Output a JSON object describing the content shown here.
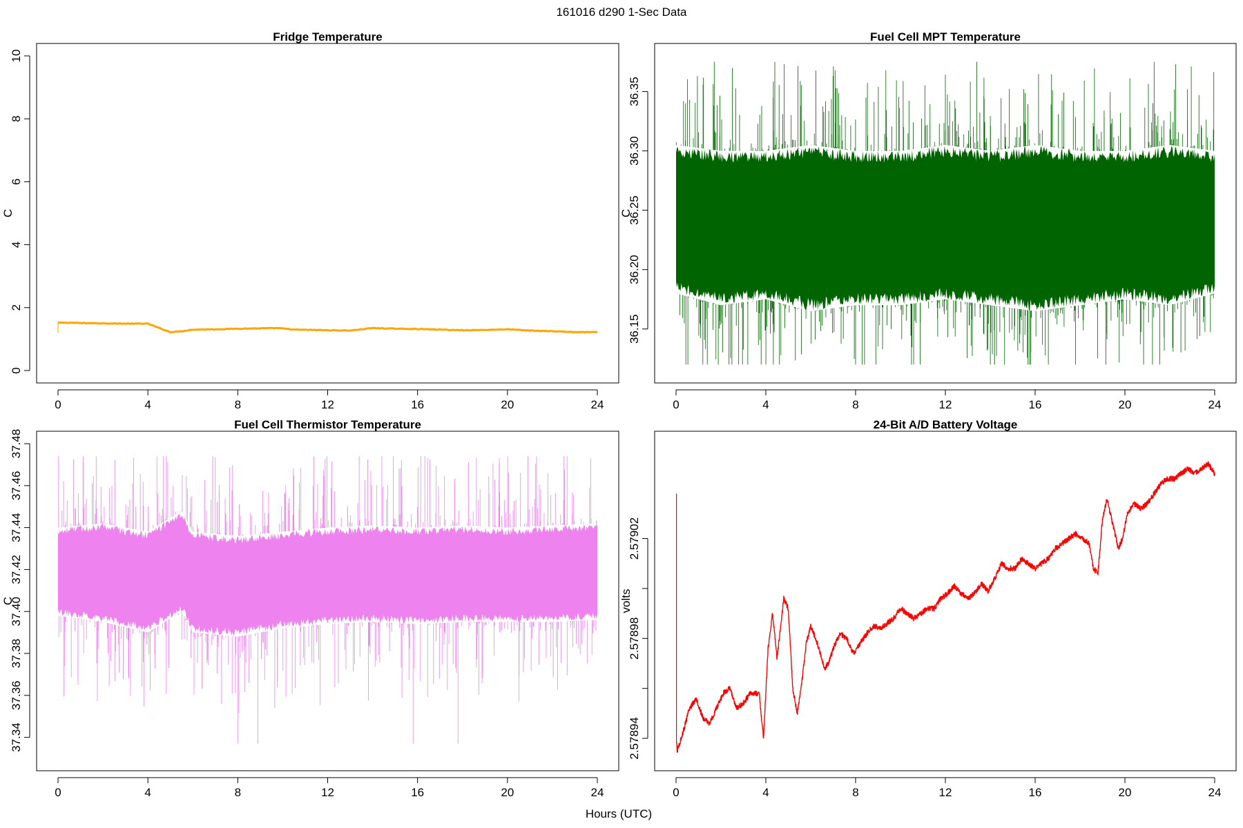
{
  "figure": {
    "title": "161016   d290   1-Sec Data",
    "xlabel": "Hours (UTC)"
  },
  "chart_data": [
    {
      "type": "line",
      "title": "Fridge Temperature",
      "xlabel": "Hours (UTC)",
      "ylabel": "C",
      "xlim": [
        0,
        24
      ],
      "ylim": [
        0,
        10
      ],
      "xticks": [
        0,
        4,
        8,
        12,
        16,
        20,
        24
      ],
      "yticks": [
        0,
        2,
        4,
        6,
        8,
        10
      ],
      "ytick_labels": [
        "0",
        "2",
        "4",
        "6",
        "8",
        "10"
      ],
      "color": "#ffa500",
      "series": [
        {
          "x": [
            0,
            0.5,
            1,
            2,
            3,
            4,
            4.5,
            5,
            5.5,
            6,
            7,
            8,
            9,
            9.8,
            10.5,
            12,
            13,
            14,
            15,
            16,
            17,
            18,
            19,
            20,
            21,
            22,
            23,
            24
          ],
          "y": [
            1.52,
            1.52,
            1.51,
            1.5,
            1.49,
            1.49,
            1.35,
            1.22,
            1.25,
            1.3,
            1.31,
            1.33,
            1.34,
            1.35,
            1.3,
            1.28,
            1.27,
            1.35,
            1.33,
            1.32,
            1.3,
            1.28,
            1.29,
            1.31,
            1.27,
            1.25,
            1.22,
            1.22
          ]
        }
      ]
    },
    {
      "type": "line",
      "title": "Fuel Cell MPT Temperature",
      "xlabel": "Hours (UTC)",
      "ylabel": "C",
      "xlim": [
        0,
        24
      ],
      "ylim": [
        36.115,
        36.38
      ],
      "xticks": [
        0,
        4,
        8,
        12,
        16,
        20,
        24
      ],
      "yticks": [
        36.15,
        36.2,
        36.25,
        36.3,
        36.35
      ],
      "ytick_labels": [
        "36.15",
        "36.20",
        "36.25",
        "36.30",
        "36.35"
      ],
      "color": "#006400",
      "series": [
        {
          "x": [
            0,
            2,
            4,
            6,
            8,
            10,
            12,
            14,
            16,
            18,
            20,
            22,
            24
          ],
          "y": [
            36.24,
            36.24,
            36.24,
            36.24,
            36.24,
            36.24,
            36.24,
            36.24,
            36.24,
            36.24,
            36.24,
            36.24,
            36.24
          ],
          "low": [
            36.18,
            36.17,
            36.175,
            36.165,
            36.17,
            36.17,
            36.175,
            36.17,
            36.165,
            36.17,
            36.175,
            36.17,
            36.18
          ],
          "high": [
            36.305,
            36.3,
            36.3,
            36.305,
            36.3,
            36.3,
            36.305,
            36.3,
            36.305,
            36.3,
            36.3,
            36.305,
            36.3
          ],
          "min": 36.12,
          "max": 36.375
        }
      ]
    },
    {
      "type": "line",
      "title": "Fuel Cell Thermistor Temperature",
      "xlabel": "Hours (UTC)",
      "ylabel": "C",
      "xlim": [
        0,
        24
      ],
      "ylim": [
        37.33,
        37.48
      ],
      "xticks": [
        0,
        4,
        8,
        12,
        16,
        20,
        24
      ],
      "yticks": [
        37.34,
        37.36,
        37.38,
        37.4,
        37.42,
        37.44,
        37.46,
        37.48
      ],
      "ytick_labels": [
        "37.34",
        "37.36",
        "37.38",
        "37.40",
        "37.42",
        "37.44",
        "37.46",
        "37.48"
      ],
      "color": "#ee82ee",
      "series": [
        {
          "x": [
            0,
            2,
            4,
            5.5,
            6,
            8,
            10,
            12,
            14,
            16,
            18,
            20,
            22,
            24
          ],
          "y": [
            37.418,
            37.418,
            37.415,
            37.42,
            37.415,
            37.413,
            37.415,
            37.416,
            37.417,
            37.416,
            37.417,
            37.417,
            37.417,
            37.417
          ],
          "low": [
            37.398,
            37.395,
            37.39,
            37.4,
            37.39,
            37.388,
            37.392,
            37.394,
            37.395,
            37.394,
            37.395,
            37.395,
            37.395,
            37.396
          ],
          "high": [
            37.44,
            37.442,
            37.438,
            37.448,
            37.438,
            37.436,
            37.438,
            37.44,
            37.441,
            37.44,
            37.441,
            37.44,
            37.441,
            37.442
          ],
          "min": 37.337,
          "max": 37.474
        }
      ]
    },
    {
      "type": "line",
      "title": "24-Bit A/D Battery Voltage",
      "xlabel": "Hours (UTC)",
      "ylabel": "volts",
      "xlim": [
        0,
        24
      ],
      "ylim": [
        2.578932,
        2.579058
      ],
      "xticks": [
        0,
        4,
        8,
        12,
        16,
        20,
        24
      ],
      "yticks": [
        2.57894,
        2.57896,
        2.57898,
        2.579,
        2.57902
      ],
      "ytick_labels": [
        "2.57894",
        "",
        "2.57898",
        "",
        "2.57902"
      ],
      "color": "#ff0000",
      "series": [
        {
          "x": [
            0,
            0.02,
            0.05,
            0.3,
            0.6,
            0.9,
            1.2,
            1.5,
            1.8,
            2.1,
            2.4,
            2.7,
            3.0,
            3.3,
            3.7,
            3.9,
            4.1,
            4.3,
            4.5,
            4.8,
            5.0,
            5.2,
            5.4,
            5.6,
            5.8,
            6.0,
            6.3,
            6.6,
            6.8,
            7.0,
            7.3,
            7.6,
            7.9,
            8.2,
            8.5,
            8.8,
            9.1,
            9.4,
            9.7,
            10.0,
            10.3,
            10.6,
            10.9,
            11.2,
            11.5,
            11.8,
            12.1,
            12.4,
            12.7,
            13.0,
            13.3,
            13.6,
            13.9,
            14.2,
            14.5,
            14.8,
            15.1,
            15.4,
            15.7,
            16.0,
            16.3,
            16.6,
            16.9,
            17.2,
            17.5,
            17.8,
            18.1,
            18.4,
            18.6,
            18.8,
            19.0,
            19.2,
            19.4,
            19.7,
            19.9,
            20.1,
            20.4,
            20.7,
            21.0,
            21.3,
            21.6,
            21.9,
            22.2,
            22.5,
            22.8,
            23.1,
            23.4,
            23.7,
            24.0
          ],
          "y": [
            2.579038,
            2.578938,
            2.578935,
            2.578942,
            2.578952,
            2.578956,
            2.578948,
            2.578946,
            2.578952,
            2.578958,
            2.57896,
            2.578952,
            2.578954,
            2.578958,
            2.578958,
            2.57894,
            2.578976,
            2.57899,
            2.578972,
            2.578996,
            2.578992,
            2.57896,
            2.57895,
            2.578962,
            2.578978,
            2.578985,
            2.578978,
            2.578968,
            2.57897,
            2.578976,
            2.578982,
            2.57898,
            2.578974,
            2.578978,
            2.578982,
            2.578985,
            2.578984,
            2.578986,
            2.578988,
            2.578992,
            2.57899,
            2.578988,
            2.57899,
            2.578992,
            2.578992,
            2.578996,
            2.578998,
            2.579001,
            2.578998,
            2.578996,
            2.578998,
            2.579002,
            2.578999,
            2.579004,
            2.57901,
            2.579008,
            2.579008,
            2.579012,
            2.57901,
            2.579008,
            2.57901,
            2.579012,
            2.579016,
            2.579018,
            2.57902,
            2.579022,
            2.57902,
            2.579018,
            2.579008,
            2.579006,
            2.579028,
            2.579036,
            2.579028,
            2.579016,
            2.57902,
            2.57903,
            2.579034,
            2.579032,
            2.579034,
            2.579038,
            2.579042,
            2.579044,
            2.579044,
            2.579046,
            2.579048,
            2.579046,
            2.579048,
            2.57905,
            2.579046
          ]
        }
      ]
    }
  ]
}
